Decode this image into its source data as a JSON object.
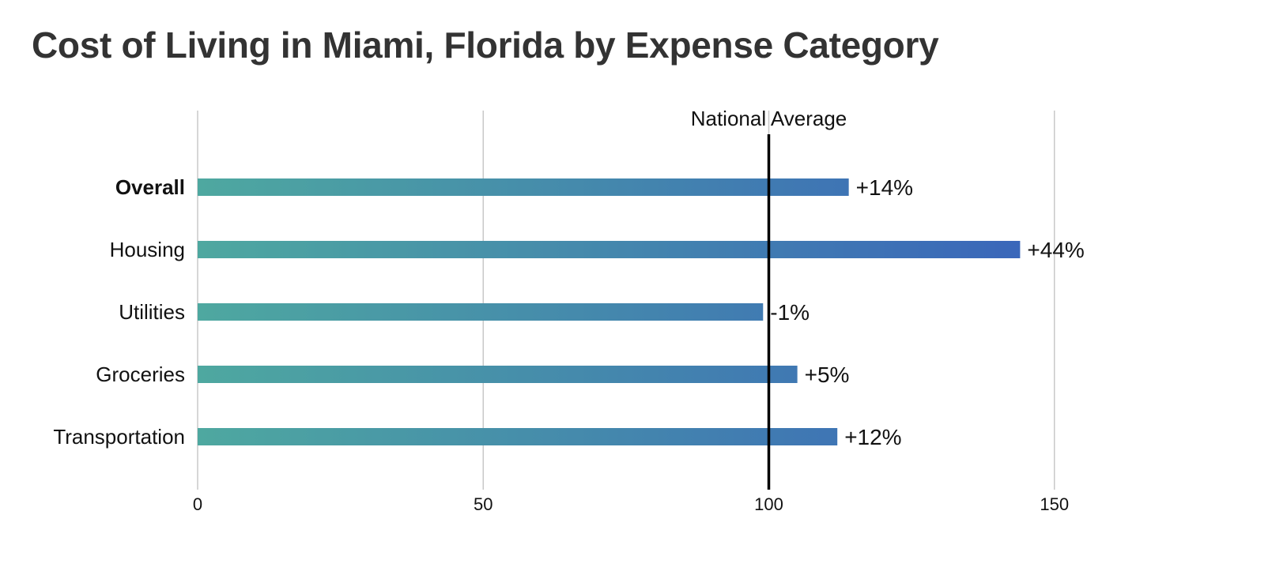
{
  "chart_data": {
    "type": "bar",
    "orientation": "horizontal",
    "title": "Cost of Living in Miami, Florida by Expense Category",
    "categories": [
      "Overall",
      "Housing",
      "Utilities",
      "Groceries",
      "Transportation"
    ],
    "values": [
      114,
      144,
      99,
      105,
      112
    ],
    "value_labels": [
      "+14%",
      "+44%",
      "-1%",
      "+5%",
      "+12%"
    ],
    "bold_category": "Overall",
    "xlim": [
      0,
      175
    ],
    "xticks": [
      0,
      50,
      100,
      150
    ],
    "grid": true,
    "reference_line": {
      "value": 100,
      "label": "National Average"
    },
    "colors": {
      "gradient_start": "#4ea8a0",
      "gradient_end": "#3a66ba",
      "grid": "#c8c8c8",
      "reference": "#000000"
    }
  }
}
